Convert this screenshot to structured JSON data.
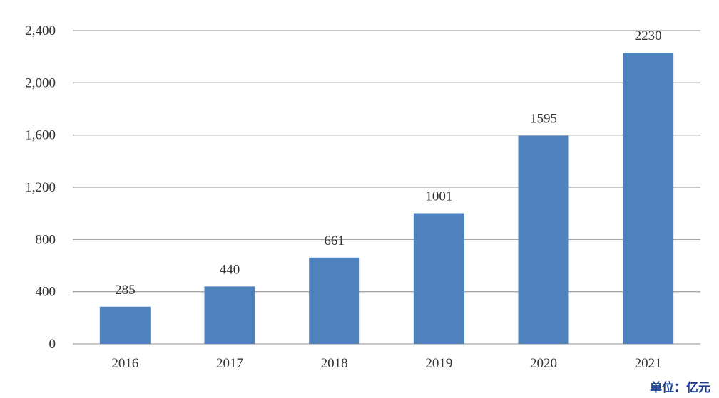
{
  "chart_data": {
    "type": "bar",
    "categories": [
      "2016",
      "2017",
      "2018",
      "2019",
      "2020",
      "2021"
    ],
    "values": [
      285,
      440,
      661,
      1001,
      1595,
      2230
    ],
    "data_labels": [
      "285",
      "440",
      "661",
      "1001",
      "1595",
      "2230"
    ],
    "y_ticks": [
      0,
      400,
      800,
      1200,
      1600,
      2000,
      2400
    ],
    "y_tick_labels": [
      "0",
      "400",
      "800",
      "1,200",
      "1,600",
      "2,000",
      "2,400"
    ],
    "ylim": [
      0,
      2400
    ],
    "grid": true,
    "unit": "单位：亿元",
    "bar_color": "#4f81bd",
    "grid_color": "#a6a6a6"
  }
}
